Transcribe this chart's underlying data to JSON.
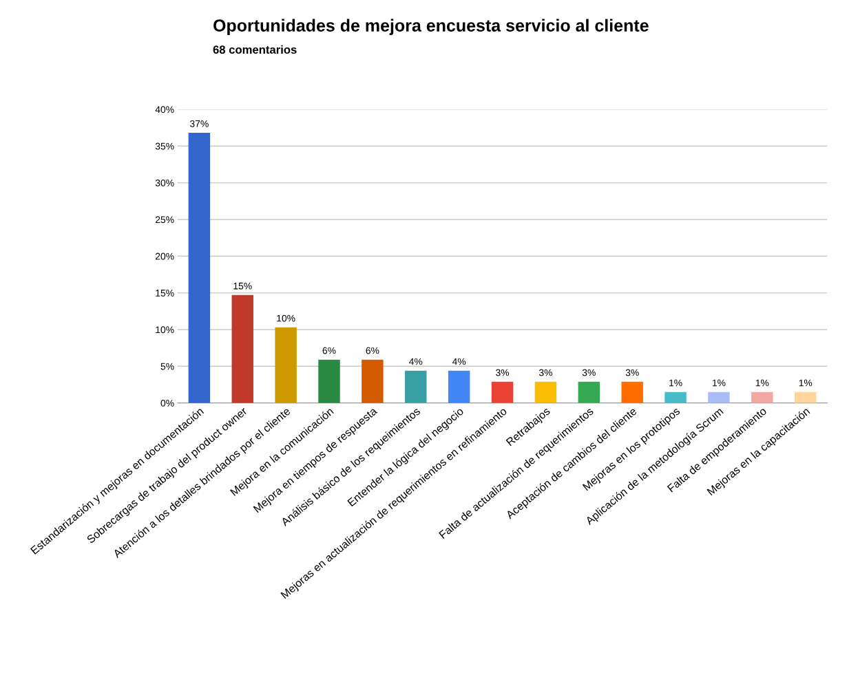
{
  "chart_data": {
    "type": "bar",
    "title": "Oportunidades de mejora encuesta servicio al cliente",
    "subtitle": "68 comentarios",
    "categories": [
      "Estandarización y mejoras en documentación",
      "Sobrecargas de trabajo del product owner",
      "Atención a los detalles brindados por el cliente",
      "Mejora en la comunicación",
      "Mejora en tiempos de respuesta",
      "Análisis básico de los requeimientos",
      "Entender la lógica del negocio",
      "Mejoras en actualización de requerimientos en refinamiento",
      "Retrabajos",
      "Falta de actualización de requerimientos",
      "Aceptación de cambios del cliente",
      "Mejoras en los prototipos",
      "Aplicación de la metodología Scrum",
      "Falta de empoderamiento",
      "Mejoras en la capacitación"
    ],
    "values": [
      36.8,
      14.7,
      10.3,
      5.9,
      5.9,
      4.4,
      4.4,
      2.9,
      2.9,
      2.9,
      2.9,
      1.5,
      1.5,
      1.5,
      1.5
    ],
    "value_labels": [
      "37%",
      "15%",
      "10%",
      "6%",
      "6%",
      "4%",
      "4%",
      "3%",
      "3%",
      "3%",
      "3%",
      "1%",
      "1%",
      "1%",
      "1%"
    ],
    "colors": [
      "#3366cc",
      "#c0392b",
      "#cf9900",
      "#2a8a43",
      "#d35a00",
      "#389fa4",
      "#4285f4",
      "#ea4335",
      "#fbbc04",
      "#34a853",
      "#ff6d01",
      "#46bdc6",
      "#a9bcf5",
      "#f1a8a5",
      "#fcd69c"
    ],
    "ylim": [
      0,
      40
    ],
    "yticks": [
      {
        "value": 0,
        "label": "0%"
      },
      {
        "value": 5,
        "label": "5%"
      },
      {
        "value": 10,
        "label": "10%"
      },
      {
        "value": 15,
        "label": "15%"
      },
      {
        "value": 20,
        "label": "20%"
      },
      {
        "value": 25,
        "label": "25%"
      },
      {
        "value": 30,
        "label": "30%"
      },
      {
        "value": 35,
        "label": "35%"
      },
      {
        "value": 40,
        "label": "40%"
      }
    ],
    "grid": "y",
    "legend": false
  }
}
